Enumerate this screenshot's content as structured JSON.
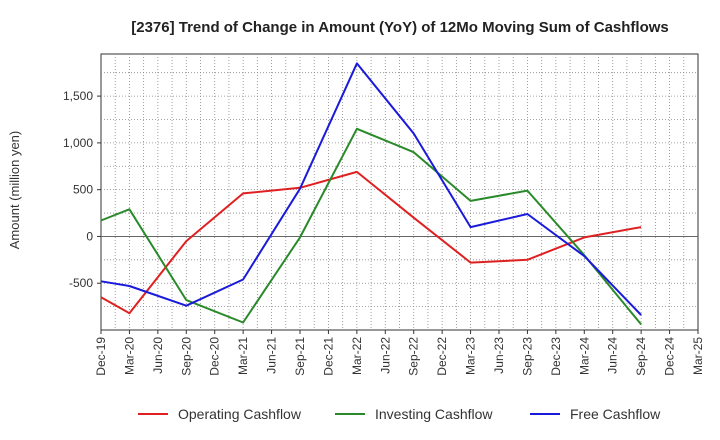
{
  "chart_data": {
    "type": "line",
    "title": "[2376]  Trend of Change in Amount (YoY) of 12Mo Moving Sum of Cashflows",
    "ylabel": "Amount (million yen)",
    "xlabel": "",
    "categories": [
      "Dec-19",
      "Mar-20",
      "Jun-20",
      "Sep-20",
      "Dec-20",
      "Mar-21",
      "Jun-21",
      "Sep-21",
      "Dec-21",
      "Mar-22",
      "Jun-22",
      "Sep-22",
      "Dec-22",
      "Mar-23",
      "Jun-23",
      "Sep-23",
      "Dec-23",
      "Mar-24",
      "Jun-24",
      "Sep-24",
      "Dec-24",
      "Mar-25"
    ],
    "ylim": [
      -1000,
      1950
    ],
    "yticks": [
      -500,
      0,
      500,
      1000,
      1500
    ],
    "ytick_labels": [
      "-500",
      "0",
      "500",
      "1,000",
      "1,500"
    ],
    "grid": true,
    "legend_position": "bottom",
    "series": [
      {
        "name": "Operating Cashflow",
        "color": "#e02020",
        "values": [
          -650,
          -820,
          null,
          -50,
          null,
          460,
          null,
          520,
          null,
          690,
          null,
          200,
          null,
          -280,
          null,
          -250,
          null,
          -10,
          null,
          100,
          null,
          null
        ]
      },
      {
        "name": "Investing Cashflow",
        "color": "#2a8a2a",
        "values": [
          170,
          290,
          null,
          -680,
          null,
          -920,
          null,
          -10,
          null,
          1150,
          null,
          900,
          null,
          380,
          null,
          490,
          null,
          -200,
          null,
          -940,
          null,
          null
        ]
      },
      {
        "name": "Free Cashflow",
        "color": "#1a1adb",
        "values": [
          -480,
          -530,
          null,
          -740,
          null,
          -460,
          null,
          510,
          null,
          1850,
          null,
          1100,
          null,
          100,
          null,
          240,
          null,
          -210,
          null,
          -840,
          null,
          null
        ]
      }
    ]
  }
}
